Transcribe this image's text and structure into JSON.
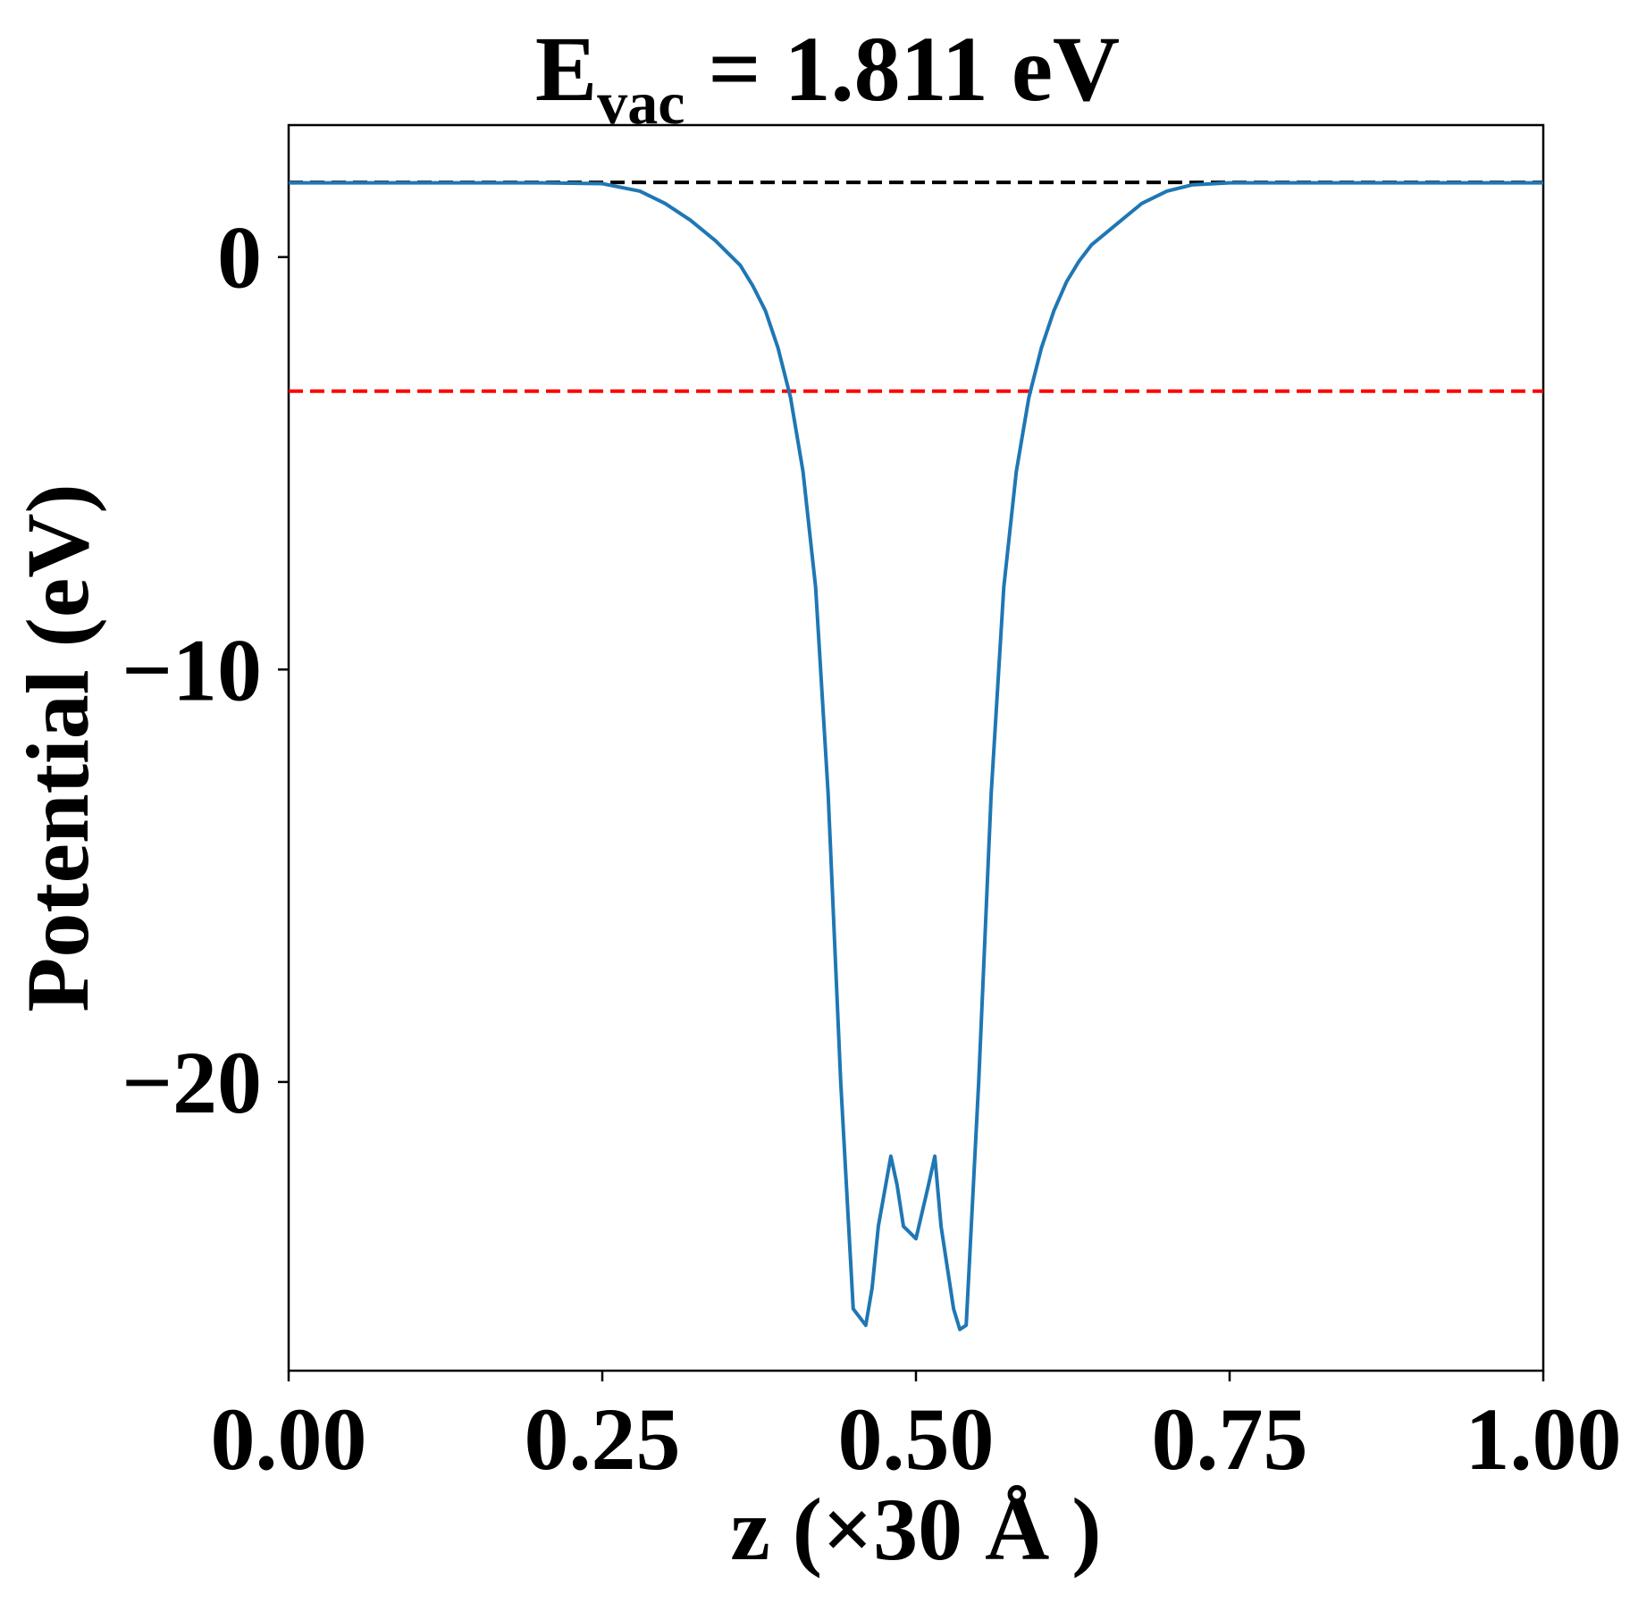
{
  "chart_data": {
    "type": "line",
    "title": {
      "main": "E",
      "subscript": "vac",
      "rest": " = 1.811 eV"
    },
    "xlabel": "z (×30 Å )",
    "ylabel": "Potential (eV)",
    "xlim": [
      0.0,
      1.0
    ],
    "ylim": [
      -27.0,
      3.2
    ],
    "xticks": [
      0.0,
      0.25,
      0.5,
      0.75,
      1.0
    ],
    "xtick_labels": [
      "0.00",
      "0.25",
      "0.50",
      "0.75",
      "1.00"
    ],
    "yticks": [
      0,
      -10,
      -20
    ],
    "ytick_labels": [
      "0",
      "−10",
      "−20"
    ],
    "grid": false,
    "legend": "none",
    "series": [
      {
        "color": "#1f77b4",
        "x": [
          0.0,
          0.05,
          0.1,
          0.15,
          0.2,
          0.25,
          0.28,
          0.3,
          0.32,
          0.34,
          0.36,
          0.37,
          0.38,
          0.39,
          0.4,
          0.41,
          0.42,
          0.43,
          0.44,
          0.45,
          0.46,
          0.465,
          0.47,
          0.48,
          0.485,
          0.49,
          0.5,
          0.51,
          0.515,
          0.52,
          0.53,
          0.535,
          0.54,
          0.55,
          0.56,
          0.57,
          0.58,
          0.59,
          0.6,
          0.61,
          0.62,
          0.63,
          0.64,
          0.66,
          0.68,
          0.7,
          0.72,
          0.75,
          0.8,
          0.85,
          0.9,
          0.95,
          1.0
        ],
        "y": [
          1.8,
          1.8,
          1.8,
          1.8,
          1.8,
          1.78,
          1.6,
          1.3,
          0.9,
          0.4,
          -0.2,
          -0.7,
          -1.3,
          -2.2,
          -3.4,
          -5.2,
          -8.0,
          -13.0,
          -20.0,
          -25.5,
          -25.9,
          -25.0,
          -23.5,
          -21.8,
          -22.5,
          -23.5,
          -23.8,
          -22.5,
          -21.8,
          -23.5,
          -25.5,
          -26.0,
          -25.9,
          -20.0,
          -13.0,
          -8.0,
          -5.2,
          -3.4,
          -2.2,
          -1.3,
          -0.6,
          -0.1,
          0.3,
          0.8,
          1.3,
          1.6,
          1.75,
          1.8,
          1.8,
          1.8,
          1.8,
          1.8,
          1.8
        ]
      }
    ],
    "hlines": [
      {
        "y": 1.811,
        "color": "#000000",
        "style": "dashed"
      },
      {
        "y": -3.25,
        "color": "#ff0000",
        "style": "dashed"
      }
    ]
  }
}
